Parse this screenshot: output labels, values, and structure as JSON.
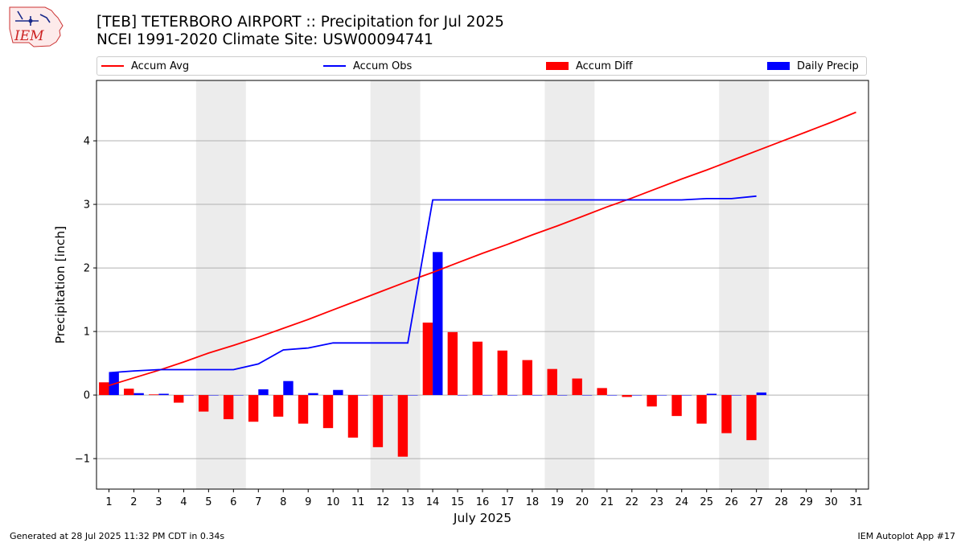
{
  "header": {
    "title_line1": "[TEB] TETERBORO AIRPORT :: Precipitation for Jul 2025",
    "title_line2": "NCEI 1991-2020 Climate Site: USW00094741"
  },
  "logo": {
    "text": "IEM"
  },
  "footer": {
    "left": "Generated at 28 Jul 2025 11:32 PM CDT in 0.34s",
    "right": "IEM Autoplot App #17"
  },
  "legend": [
    {
      "label": "Accum Avg",
      "kind": "line",
      "color": "#ff0000"
    },
    {
      "label": "Accum Obs",
      "kind": "line",
      "color": "#0000ff"
    },
    {
      "label": "Accum Diff",
      "kind": "bar",
      "color": "#ff0000"
    },
    {
      "label": "Daily Precip",
      "kind": "bar",
      "color": "#0000ff"
    }
  ],
  "chart_data": {
    "type": "bar",
    "xlabel": "July 2025",
    "ylabel": "Precipitation [inch]",
    "xlim": [
      0.5,
      31.5
    ],
    "ylim": [
      -1.48,
      4.95
    ],
    "yticks": [
      -1,
      0,
      1,
      2,
      3,
      4
    ],
    "ytick_labels": [
      "−1",
      "0",
      "1",
      "2",
      "3",
      "4"
    ],
    "grid": "horizontal",
    "legend_position": "top",
    "weekend_shading": [
      [
        5,
        6
      ],
      [
        12,
        13
      ],
      [
        19,
        20
      ],
      [
        26,
        27
      ]
    ],
    "days": [
      1,
      2,
      3,
      4,
      5,
      6,
      7,
      8,
      9,
      10,
      11,
      12,
      13,
      14,
      15,
      16,
      17,
      18,
      19,
      20,
      21,
      22,
      23,
      24,
      25,
      26,
      27,
      28,
      29,
      30,
      31
    ],
    "series": [
      {
        "name": "Accum Avg",
        "kind": "line",
        "color": "#ff0000",
        "values": [
          0.15,
          0.27,
          0.39,
          0.52,
          0.66,
          0.78,
          0.91,
          1.05,
          1.19,
          1.34,
          1.49,
          1.64,
          1.79,
          1.93,
          2.08,
          2.23,
          2.37,
          2.52,
          2.66,
          2.81,
          2.96,
          3.1,
          3.25,
          3.4,
          3.54,
          3.69,
          3.84,
          3.99,
          4.14,
          4.29,
          4.45
        ]
      },
      {
        "name": "Accum Obs",
        "kind": "line",
        "color": "#0000ff",
        "values": [
          0.35,
          0.38,
          0.4,
          0.4,
          0.4,
          0.4,
          0.49,
          0.71,
          0.74,
          0.82,
          0.82,
          0.82,
          0.82,
          3.07,
          3.07,
          3.07,
          3.07,
          3.07,
          3.07,
          3.07,
          3.07,
          3.07,
          3.07,
          3.07,
          3.09,
          3.09,
          3.13
        ]
      },
      {
        "name": "Accum Diff",
        "kind": "bar",
        "color": "#ff0000",
        "values": [
          0.2,
          0.1,
          0.01,
          -0.12,
          -0.26,
          -0.38,
          -0.42,
          -0.34,
          -0.45,
          -0.52,
          -0.67,
          -0.82,
          -0.97,
          1.14,
          0.99,
          0.84,
          0.7,
          0.55,
          0.41,
          0.26,
          0.11,
          -0.03,
          -0.18,
          -0.33,
          -0.45,
          -0.6,
          -0.71
        ]
      },
      {
        "name": "Daily Precip",
        "kind": "bar",
        "color": "#0000ff",
        "values": [
          0.35,
          0.03,
          0.02,
          0.0,
          0.0,
          0.0,
          0.09,
          0.22,
          0.03,
          0.08,
          0.0,
          0.0,
          0.0,
          2.25,
          0.0,
          0.0,
          0.0,
          0.0,
          0.0,
          0.0,
          0.0,
          0.0,
          0.0,
          0.0,
          0.02,
          0.0,
          0.04
        ]
      }
    ]
  }
}
